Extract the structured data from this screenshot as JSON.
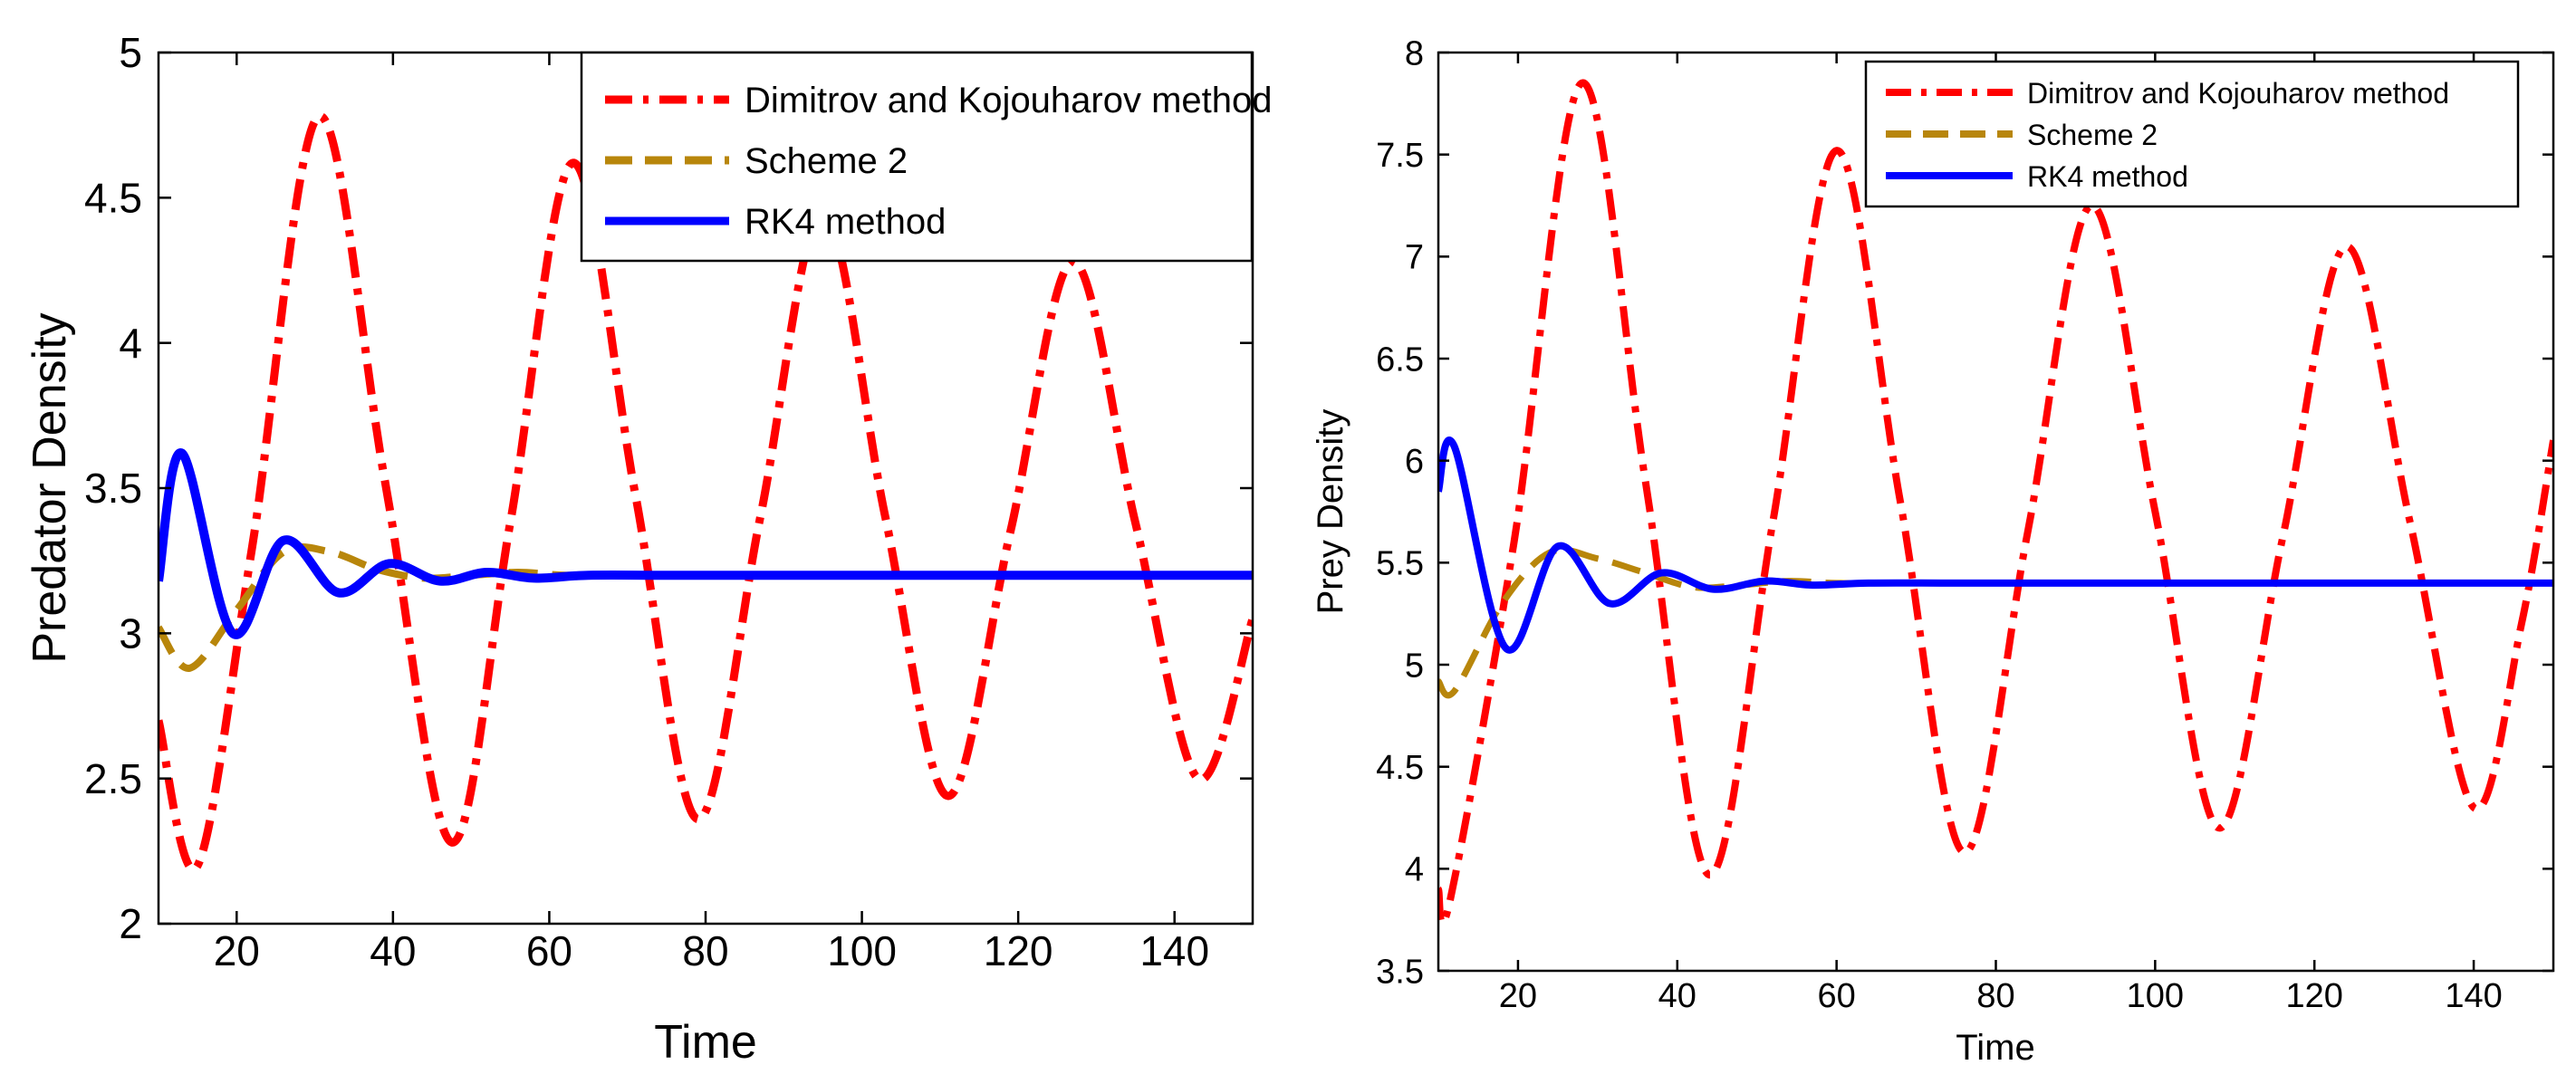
{
  "chart_data": [
    {
      "type": "line",
      "id": "predator",
      "title": "",
      "xlabel": "Time",
      "ylabel": "Predator Density",
      "xlim": [
        10,
        150
      ],
      "ylim": [
        2,
        5
      ],
      "xticks": [
        "20",
        "40",
        "60",
        "80",
        "100",
        "120",
        "140"
      ],
      "yticks": [
        "2",
        "2.5",
        "3",
        "3.5",
        "4",
        "4.5",
        "5"
      ],
      "legend_position": "top-right",
      "series": [
        {
          "name": "Dimitrov and Kojouharov method",
          "style": "dash-dot",
          "color": "#ff0000",
          "x": [
            10,
            15,
            22,
            30.5,
            39,
            47.5,
            55,
            63,
            71,
            79,
            87,
            95,
            103,
            111,
            119,
            127,
            135,
            143,
            150
          ],
          "values": [
            2.7,
            2.2,
            3.3,
            4.78,
            3.52,
            2.28,
            3.38,
            4.62,
            3.48,
            2.36,
            3.4,
            4.45,
            3.4,
            2.44,
            3.35,
            4.28,
            3.38,
            2.5,
            3.05
          ]
        },
        {
          "name": "Scheme 2",
          "style": "dashed",
          "color": "#b8860b",
          "x": [
            10,
            14,
            20,
            26,
            32,
            38,
            44,
            50,
            56,
            62,
            70,
            90,
            110,
            130,
            150
          ],
          "values": [
            3.02,
            2.88,
            3.08,
            3.28,
            3.28,
            3.22,
            3.19,
            3.2,
            3.21,
            3.2,
            3.2,
            3.2,
            3.2,
            3.2,
            3.2
          ]
        },
        {
          "name": "RK4 method",
          "style": "solid",
          "color": "#0000ff",
          "x": [
            10,
            13,
            19.5,
            26,
            33,
            39.5,
            46,
            52,
            58,
            65,
            75,
            90,
            110,
            130,
            150
          ],
          "values": [
            3.18,
            3.62,
            3.0,
            3.32,
            3.14,
            3.24,
            3.18,
            3.21,
            3.19,
            3.2,
            3.2,
            3.2,
            3.2,
            3.2,
            3.2
          ]
        }
      ]
    },
    {
      "type": "line",
      "id": "prey",
      "title": "",
      "xlabel": "Time",
      "ylabel": "Prey Density",
      "xlim": [
        10,
        150
      ],
      "ylim": [
        3.5,
        8
      ],
      "xticks": [
        "20",
        "40",
        "60",
        "80",
        "100",
        "120",
        "140"
      ],
      "yticks": [
        "3.5",
        "4",
        "4.5",
        "5",
        "5.5",
        "6",
        "6.5",
        "7",
        "7.5",
        "8"
      ],
      "legend_position": "top-right",
      "series": [
        {
          "name": "Dimitrov and Kojouharov method",
          "style": "dash-dot",
          "color": "#ff0000",
          "x": [
            10,
            11.5,
            19.5,
            28,
            36,
            44,
            52,
            60,
            68,
            76,
            84,
            92,
            100,
            108,
            116,
            124,
            132,
            140,
            146,
            150
          ],
          "values": [
            3.9,
            3.85,
            5.6,
            7.85,
            5.9,
            3.97,
            5.7,
            7.52,
            5.8,
            4.08,
            5.65,
            7.25,
            5.75,
            4.2,
            5.62,
            7.05,
            5.7,
            4.3,
            5.2,
            6.1
          ]
        },
        {
          "name": "Scheme 2",
          "style": "dashed",
          "color": "#b8860b",
          "x": [
            10,
            12,
            18,
            24,
            30,
            36,
            42,
            48,
            54,
            60,
            70,
            90,
            110,
            130,
            150
          ],
          "values": [
            4.92,
            4.87,
            5.3,
            5.55,
            5.52,
            5.45,
            5.38,
            5.39,
            5.41,
            5.4,
            5.4,
            5.4,
            5.4,
            5.4,
            5.4
          ]
        },
        {
          "name": "RK4 method",
          "style": "solid",
          "color": "#0000ff",
          "x": [
            10,
            12,
            18.5,
            25,
            31.5,
            38,
            44.5,
            51,
            57,
            64,
            75,
            90,
            110,
            130,
            150
          ],
          "values": [
            5.85,
            6.07,
            5.08,
            5.58,
            5.3,
            5.45,
            5.37,
            5.41,
            5.39,
            5.4,
            5.4,
            5.4,
            5.4,
            5.4,
            5.4
          ]
        }
      ]
    }
  ]
}
